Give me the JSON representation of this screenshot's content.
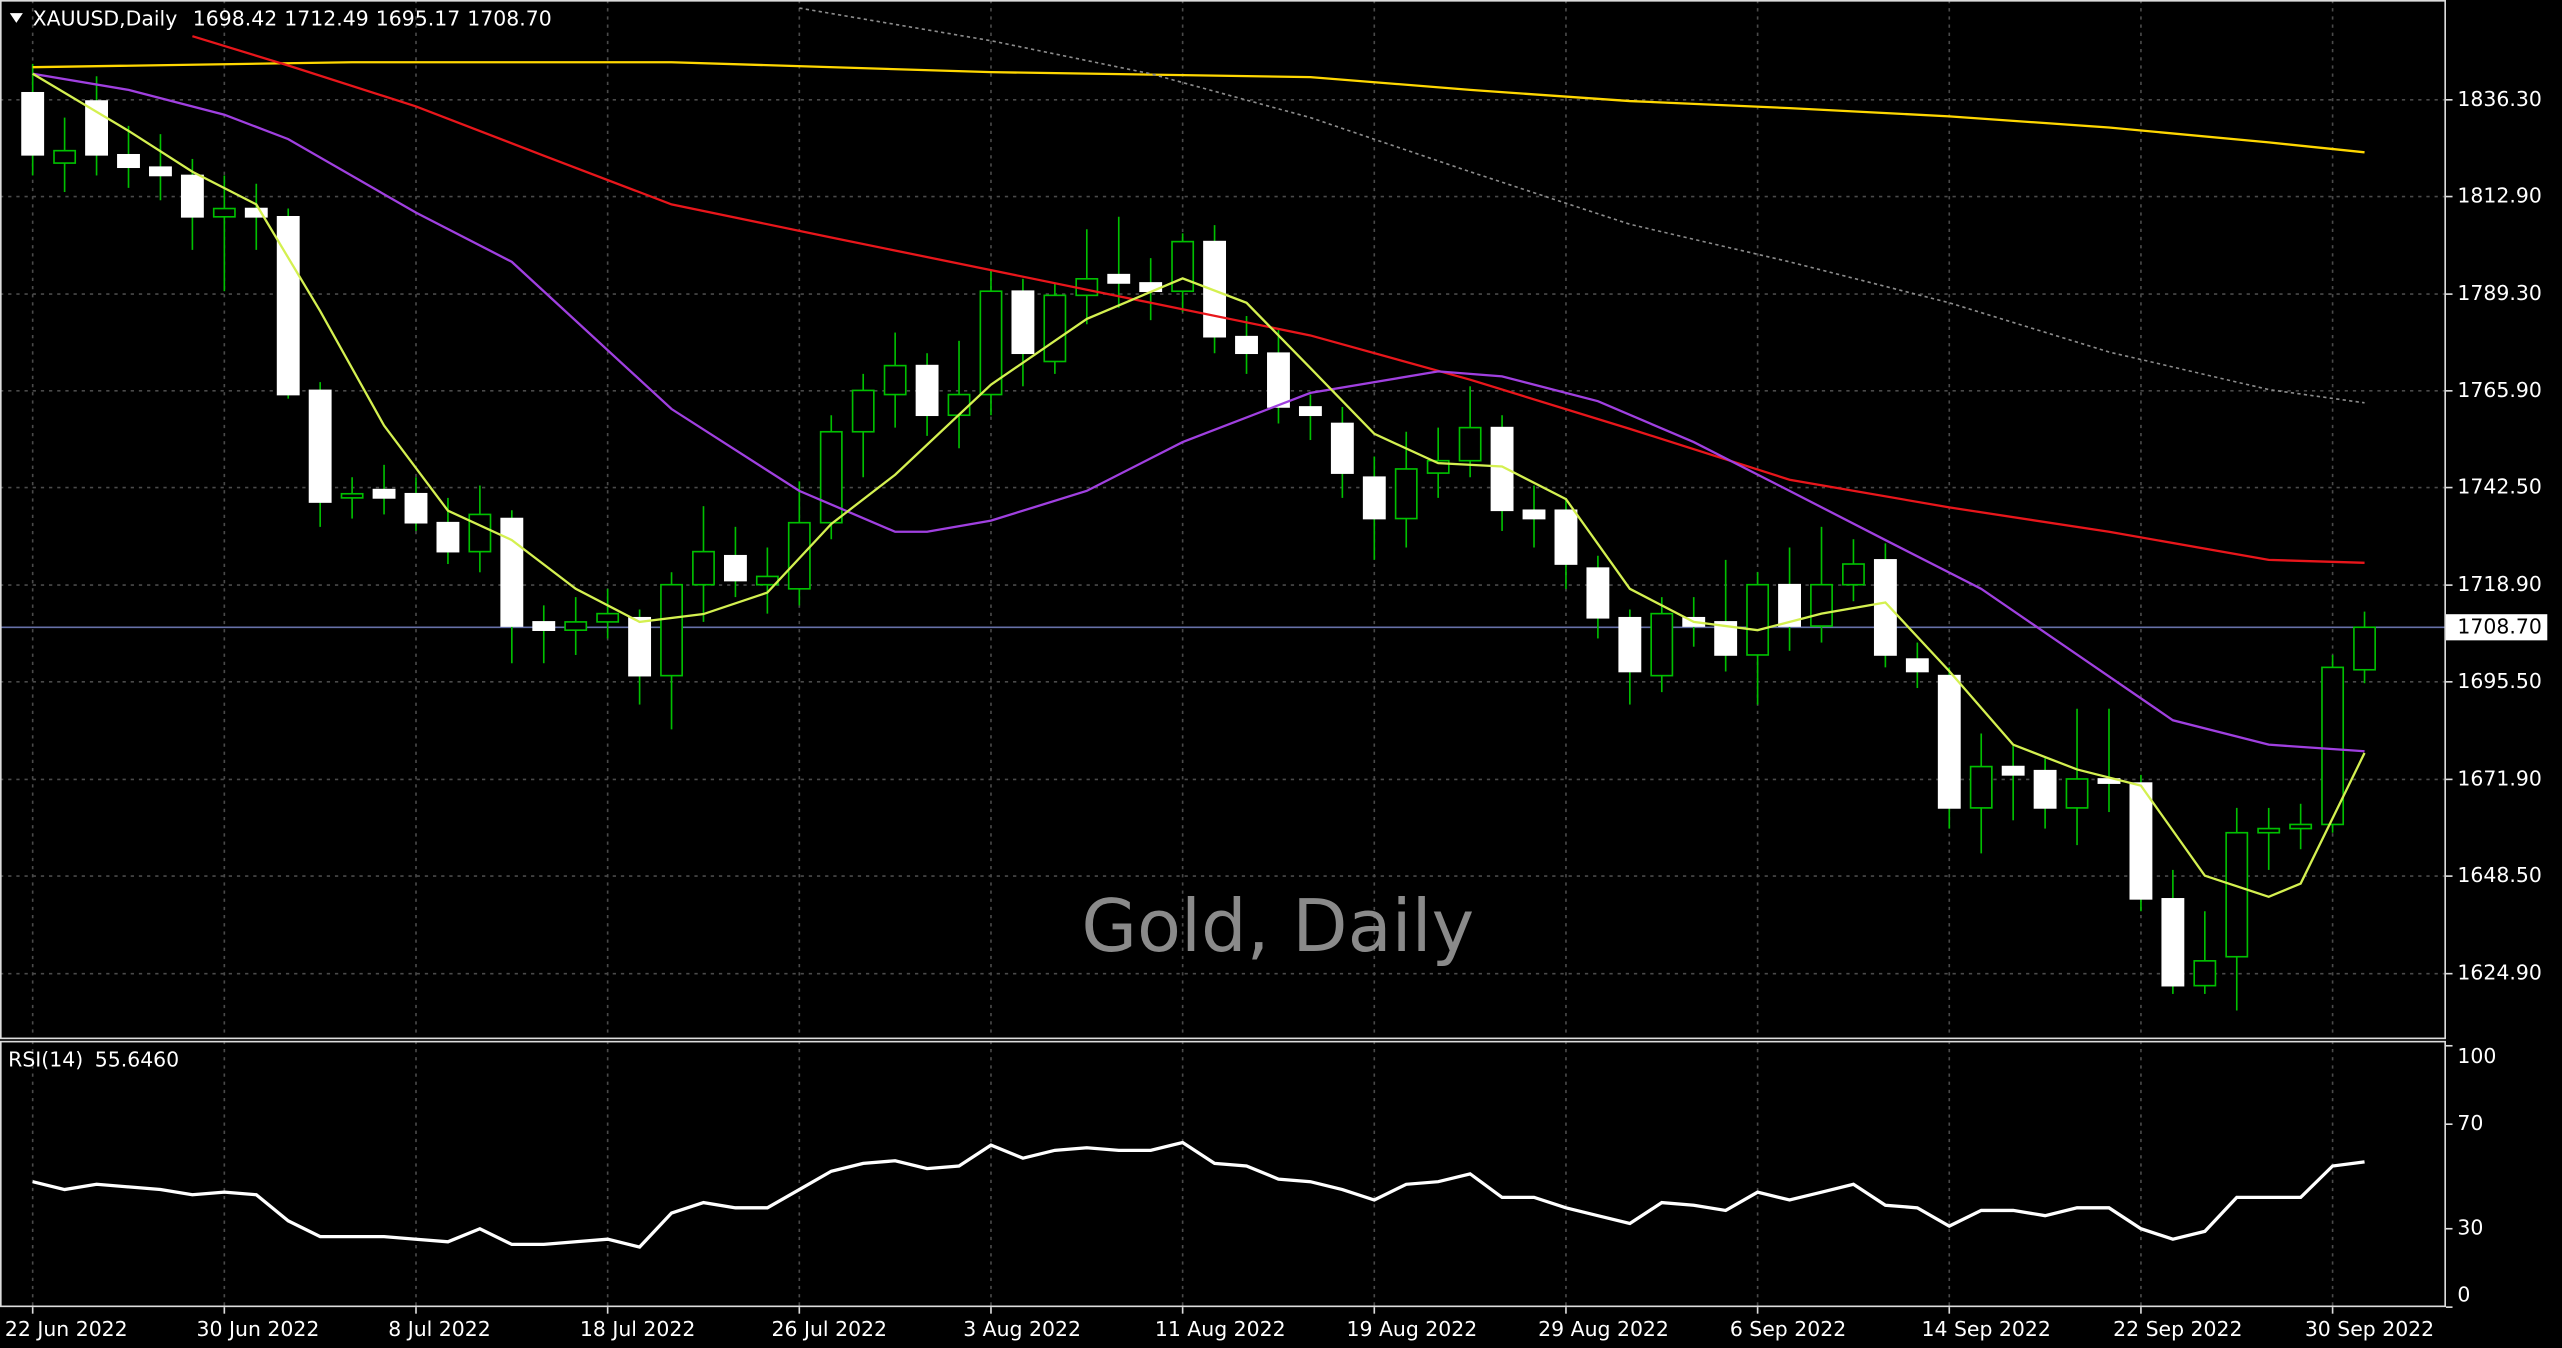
{
  "chart_data": {
    "type": "candlestick",
    "symbol": "XAUUSD,Daily",
    "watermark": "Gold, Daily",
    "categories": [
      "22 Jun 2022",
      null,
      null,
      null,
      null,
      null,
      "30 Jun 2022",
      null,
      null,
      null,
      null,
      null,
      "8 Jul 2022",
      null,
      null,
      null,
      null,
      null,
      "18 Jul 2022",
      null,
      null,
      null,
      null,
      null,
      "26 Jul 2022",
      null,
      null,
      null,
      null,
      null,
      "3 Aug 2022",
      null,
      null,
      null,
      null,
      null,
      "11 Aug 2022",
      null,
      null,
      null,
      null,
      null,
      "19 Aug 2022",
      null,
      null,
      null,
      null,
      null,
      "29 Aug 2022",
      null,
      null,
      null,
      null,
      null,
      "6 Sep 2022",
      null,
      null,
      null,
      null,
      null,
      "14 Sep 2022",
      null,
      null,
      null,
      null,
      null,
      "22 Sep 2022",
      null,
      null,
      null,
      null,
      null,
      "30 Sep 2022",
      null
    ],
    "open": [
      1838,
      1821,
      1836,
      1823,
      1820,
      1818,
      1808,
      1810,
      1808,
      1766,
      1740,
      1742,
      1741,
      1734,
      1727,
      1735,
      1710,
      1708,
      1710,
      1711,
      1697,
      1719,
      1726,
      1719,
      1718,
      1734,
      1756,
      1765,
      1772,
      1760,
      1765,
      1790,
      1773,
      1789,
      1794,
      1792,
      1790,
      1802,
      1779,
      1775,
      1762,
      1758,
      1745,
      1735,
      1746,
      1749,
      1757,
      1737,
      1737,
      1723,
      1711,
      1697,
      1711,
      1710,
      1702,
      1719,
      1709,
      1719,
      1725,
      1701,
      1697,
      1665,
      1675,
      1674,
      1665,
      1672,
      1671,
      1643,
      1622,
      1629,
      1659,
      1660,
      1661,
      1698.42
    ],
    "high": [
      1845,
      1832,
      1842,
      1830,
      1828,
      1822,
      1818,
      1816,
      1810,
      1768,
      1745,
      1748,
      1745,
      1740,
      1743,
      1737,
      1714,
      1716,
      1718,
      1713,
      1722,
      1738,
      1733,
      1728,
      1744,
      1760,
      1770,
      1780,
      1775,
      1778,
      1795,
      1793,
      1792,
      1805,
      1808,
      1798,
      1804,
      1806,
      1784,
      1781,
      1765,
      1762,
      1750,
      1756,
      1757,
      1767,
      1760,
      1743,
      1740,
      1726,
      1713,
      1716,
      1716,
      1725,
      1722,
      1728,
      1733,
      1730,
      1729,
      1705,
      1699,
      1683,
      1680,
      1677,
      1689,
      1689,
      1673,
      1650,
      1640,
      1665,
      1665,
      1666,
      1702,
      1712.49
    ],
    "low": [
      1818,
      1814,
      1818,
      1815,
      1812,
      1800,
      1790,
      1800,
      1764,
      1733,
      1735,
      1736,
      1732,
      1724,
      1722,
      1700,
      1700,
      1702,
      1706,
      1690,
      1684,
      1710,
      1716,
      1712,
      1714,
      1730,
      1745,
      1757,
      1755,
      1752,
      1760,
      1767,
      1770,
      1782,
      1786,
      1783,
      1785,
      1775,
      1770,
      1758,
      1754,
      1740,
      1725,
      1728,
      1740,
      1745,
      1732,
      1728,
      1718,
      1706,
      1690,
      1693,
      1704,
      1698,
      1690,
      1703,
      1705,
      1715,
      1699,
      1694,
      1660,
      1654,
      1662,
      1660,
      1656,
      1664,
      1640,
      1620,
      1620,
      1616,
      1650,
      1655,
      1659,
      1695.17
    ],
    "close": [
      1823,
      1824,
      1823,
      1820,
      1818,
      1808,
      1810,
      1808,
      1765,
      1739,
      1741,
      1740,
      1734,
      1727,
      1736,
      1709,
      1708,
      1710,
      1712,
      1697,
      1719,
      1727,
      1720,
      1721,
      1734,
      1756,
      1766,
      1772,
      1760,
      1765,
      1790,
      1775,
      1789,
      1793,
      1792,
      1790,
      1802,
      1779,
      1775,
      1762,
      1760,
      1746,
      1735,
      1747,
      1749,
      1757,
      1737,
      1735,
      1724,
      1711,
      1698,
      1712,
      1709,
      1702,
      1719,
      1709,
      1719,
      1724,
      1702,
      1698,
      1665,
      1675,
      1673,
      1665,
      1672,
      1671,
      1643,
      1622,
      1628,
      1659,
      1660,
      1661,
      1699,
      1708.7
    ],
    "up_color": "#00c000",
    "down_color": "#ffffff",
    "last_price": {
      "value": 1708.7,
      "label": "1708.70"
    },
    "ylim": [
      1609.05,
      1860.45
    ],
    "yticks": [
      {
        "value": 1836.3,
        "label": "1836.30"
      },
      {
        "value": 1812.9,
        "label": "1812.90"
      },
      {
        "value": 1789.3,
        "label": "1789.30"
      },
      {
        "value": 1765.9,
        "label": "1765.90"
      },
      {
        "value": 1742.5,
        "label": "1742.50"
      },
      {
        "value": 1718.9,
        "label": "1718.90"
      },
      {
        "value": 1695.5,
        "label": "1695.50"
      },
      {
        "value": 1671.9,
        "label": "1671.90"
      },
      {
        "value": 1648.5,
        "label": "1648.50"
      },
      {
        "value": 1624.9,
        "label": "1624.90"
      }
    ],
    "grid": true,
    "lines": [
      {
        "color": "#ffd700",
        "dash": false,
        "x": [
          0,
          10,
          20,
          30,
          40,
          45,
          50,
          55,
          60,
          65,
          70,
          73
        ],
        "values": [
          1844.2,
          1845.4,
          1845.4,
          1843,
          1841.8,
          1838.7,
          1836,
          1834.3,
          1832.3,
          1829.6,
          1826,
          1823.6
        ]
      },
      {
        "color": "#8c8c8c",
        "dash": true,
        "x": [
          24,
          30,
          35,
          40,
          45,
          50,
          55,
          60,
          65,
          70,
          73
        ],
        "values": [
          1858.5,
          1850.6,
          1842.6,
          1832,
          1818.9,
          1806.2,
          1797.1,
          1787.2,
          1775.3,
          1766.2,
          1763
        ]
      },
      {
        "color": "#e8161b",
        "dash": false,
        "x": [
          5,
          8,
          12,
          16,
          20,
          25,
          30,
          35,
          40,
          45,
          50,
          55,
          60,
          65,
          70,
          73
        ],
        "values": [
          1851.7,
          1844.6,
          1834.7,
          1822.8,
          1811,
          1803,
          1795.1,
          1787.2,
          1779.3,
          1768.6,
          1756.7,
          1744.4,
          1737.7,
          1731.8,
          1725,
          1724.3
        ]
      },
      {
        "color": "#a040e0",
        "dash": false,
        "x": [
          0,
          3,
          6,
          8,
          12,
          15,
          20,
          24,
          27,
          28,
          30,
          33,
          36,
          40,
          44,
          46,
          49,
          52,
          55,
          58,
          61,
          64,
          67,
          70,
          73
        ],
        "values": [
          1842.6,
          1838.7,
          1832.7,
          1826.8,
          1809,
          1797.1,
          1761.5,
          1741.7,
          1731.8,
          1731.8,
          1734.5,
          1741.7,
          1753.5,
          1765.4,
          1770.6,
          1769.4,
          1763.4,
          1753.5,
          1741.7,
          1729.8,
          1718,
          1702.1,
          1686.2,
          1680.3,
          1678.7
        ]
      },
      {
        "color": "#d4f050",
        "dash": false,
        "x": [
          0,
          3,
          5,
          7,
          9,
          11,
          13,
          15,
          17,
          19,
          21,
          23,
          25,
          27,
          30,
          33,
          36,
          38,
          40,
          42,
          44,
          46,
          48,
          50,
          52,
          54,
          56,
          58,
          60,
          62,
          64,
          66,
          68,
          70,
          71,
          72,
          73
        ],
        "values": [
          1842.6,
          1828.8,
          1818.9,
          1811,
          1785.2,
          1757.5,
          1736.9,
          1729.8,
          1718,
          1710,
          1711.9,
          1717.1,
          1733.7,
          1745.6,
          1767.4,
          1783.3,
          1793.1,
          1787.2,
          1771.4,
          1755.5,
          1748.4,
          1747.6,
          1739.7,
          1718,
          1710,
          1708,
          1712,
          1714.7,
          1698.1,
          1680.3,
          1674.3,
          1670.4,
          1648.6,
          1643.5,
          1646.7,
          1662.5,
          1678.3
        ]
      }
    ],
    "rsi": {
      "title": "RSI(14)",
      "current": {
        "value": 55.646,
        "label": "55.6460"
      },
      "color": "#ffffff",
      "values": [
        48,
        45,
        47,
        46,
        45,
        43,
        44,
        43,
        33,
        27,
        27,
        27,
        26,
        25,
        30,
        24,
        24,
        25,
        26,
        23,
        36,
        40,
        38,
        38,
        45,
        52,
        55,
        56,
        53,
        54,
        62,
        57,
        60,
        61,
        60,
        60,
        63,
        55,
        54,
        49,
        48,
        45,
        41,
        47,
        48,
        51,
        42,
        42,
        38,
        35,
        32,
        40,
        39,
        37,
        44,
        41,
        44,
        47,
        39,
        38,
        31,
        37,
        37,
        35,
        38,
        38,
        30,
        26,
        29,
        42,
        42,
        42,
        54,
        55.6
      ],
      "ylim": [
        0,
        101.9
      ],
      "yticks": [
        100,
        70,
        30,
        0
      ]
    }
  }
}
